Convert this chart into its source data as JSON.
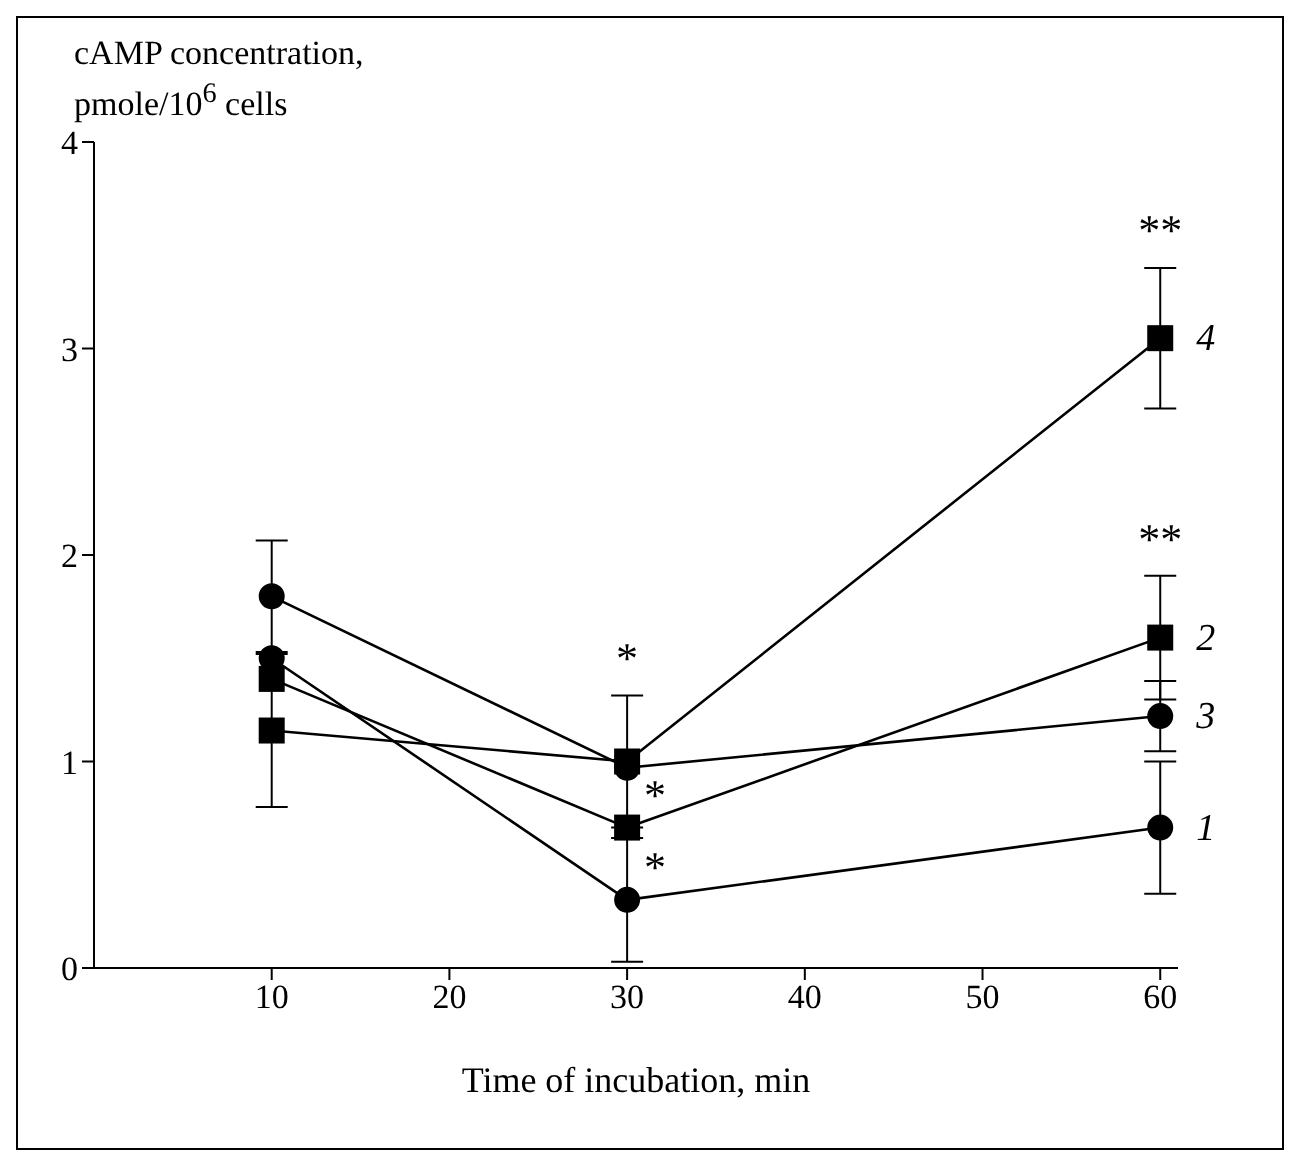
{
  "chart_data": {
    "type": "line",
    "xlabel": "Time of incubation, min",
    "ylabel": "cAMP concentration,\npmole/10$^{6}$ cells",
    "x": [
      10,
      30,
      60
    ],
    "series": [
      {
        "name": "1",
        "color": "#000000",
        "marker": "circle",
        "values": [
          1.5,
          0.33,
          0.68
        ],
        "errors": [
          null,
          0.3,
          0.32
        ],
        "value_labels": [
          null,
          "*",
          null
        ]
      },
      {
        "name": "2",
        "color": "#000000",
        "marker": "square",
        "values": [
          1.4,
          0.68,
          1.6
        ],
        "errors": [
          null,
          null,
          0.3
        ],
        "value_labels": [
          null,
          "*",
          "**"
        ]
      },
      {
        "name": "3",
        "color": "#000000",
        "marker": "circle",
        "values": [
          1.8,
          0.97,
          1.22
        ],
        "errors": [
          0.27,
          null,
          0.17
        ]
      },
      {
        "name": "4",
        "color": "#000000",
        "marker": "square",
        "values": [
          1.15,
          1.0,
          3.05
        ],
        "errors": [
          0.37,
          0.32,
          0.34
        ],
        "value_labels": [
          null,
          "*",
          "**"
        ]
      }
    ],
    "xlim": [
      0,
      61
    ],
    "xticks": [
      10,
      20,
      30,
      40,
      50,
      60
    ],
    "ylim": [
      0,
      4
    ],
    "yticks": [
      0,
      1,
      2,
      3,
      4
    ],
    "grid": false,
    "legend": false,
    "line_style": "solid"
  }
}
